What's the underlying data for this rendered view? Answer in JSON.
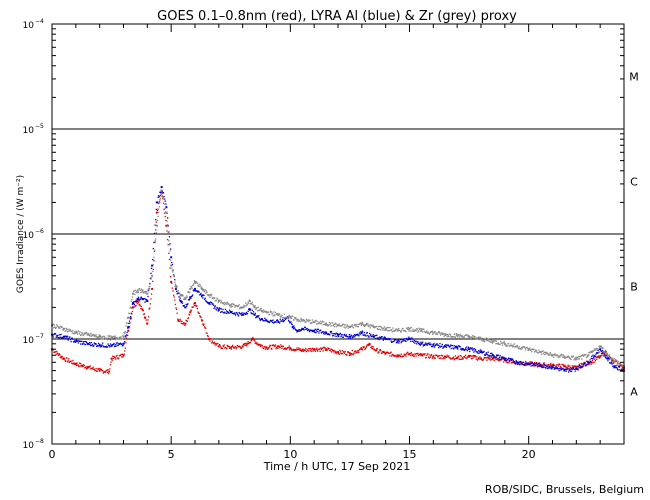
{
  "chart_data": {
    "type": "scatter",
    "title": "GOES 0.1–0.8nm (red), LYRA Al (blue) & Zr (grey) proxy",
    "xlabel": "Time / h UTC, 17 Sep 2021",
    "ylabel": "GOES Irradiance / (W m⁻²)",
    "xlim": [
      0,
      24
    ],
    "ylim": [
      1e-08,
      0.0001
    ],
    "yscale": "log",
    "x_ticks": [
      0,
      5,
      10,
      15,
      20
    ],
    "x_tick_labels": [
      "0",
      "5",
      "10",
      "15",
      "20"
    ],
    "y_ticks": [
      1e-08,
      1e-07,
      1e-06,
      1e-05,
      0.0001
    ],
    "y_tick_labels": [
      {
        "base": "10",
        "exp": "−8"
      },
      {
        "base": "10",
        "exp": "−7"
      },
      {
        "base": "10",
        "exp": "−6"
      },
      {
        "base": "10",
        "exp": "−5"
      },
      {
        "base": "10",
        "exp": "−4"
      }
    ],
    "class_lines": [
      1e-07,
      1e-06,
      1e-05
    ],
    "flare_classes": [
      {
        "label": "A",
        "center": 3.16e-08
      },
      {
        "label": "B",
        "center": 3.16e-07
      },
      {
        "label": "C",
        "center": 3.16e-06
      },
      {
        "label": "M",
        "center": 3.16e-05
      }
    ],
    "series": [
      {
        "name": "GOES 0.1–0.8nm",
        "color": "#e00000",
        "x": [
          0.0,
          0.5,
          1.0,
          1.5,
          2.0,
          2.4,
          2.5,
          3.0,
          3.2,
          3.4,
          3.6,
          3.8,
          3.9,
          4.0,
          4.2,
          4.4,
          4.6,
          4.8,
          5.0,
          5.3,
          5.6,
          5.8,
          6.0,
          6.3,
          6.6,
          7.0,
          7.5,
          8.0,
          8.2,
          8.4,
          8.7,
          9.0,
          9.5,
          10.0,
          10.5,
          11.0,
          11.5,
          12.0,
          12.5,
          13.0,
          13.3,
          13.6,
          14.0,
          14.5,
          15.0,
          15.5,
          16.0,
          16.5,
          17.0,
          17.5,
          18.0,
          18.5,
          19.0,
          19.5,
          20.0,
          20.5,
          21.0,
          21.5,
          22.0,
          22.3,
          22.6,
          23.0,
          23.2,
          23.5,
          24.0
        ],
        "y": [
          8e-08,
          6.5e-08,
          5.8e-08,
          5.4e-08,
          5e-08,
          4.9e-08,
          6.5e-08,
          7e-08,
          1.2e-07,
          2e-07,
          2.3e-07,
          1.9e-07,
          1.6e-07,
          1.4e-07,
          3e-07,
          1.6e-06,
          2.5e-06,
          1.2e-06,
          3.5e-07,
          1.5e-07,
          1.4e-07,
          1.8e-07,
          2.2e-07,
          1.5e-07,
          1e-07,
          8.5e-08,
          8.3e-08,
          8.5e-08,
          9e-08,
          1e-07,
          8.8e-08,
          8.3e-08,
          8.5e-08,
          8.2e-08,
          7.8e-08,
          8e-08,
          8e-08,
          7.5e-08,
          7.3e-08,
          8e-08,
          8.8e-08,
          7.8e-08,
          7.3e-08,
          7e-08,
          7.2e-08,
          7e-08,
          6.8e-08,
          6.8e-08,
          6.6e-08,
          6.8e-08,
          6.5e-08,
          6.5e-08,
          6.3e-08,
          6e-08,
          5.8e-08,
          5.7e-08,
          5.6e-08,
          5.5e-08,
          5.3e-08,
          5.8e-08,
          6e-08,
          6.8e-08,
          7.5e-08,
          6.2e-08,
          5.3e-08
        ]
      },
      {
        "name": "LYRA Al proxy",
        "color": "#0000d0",
        "x": [
          0.0,
          0.5,
          1.0,
          1.5,
          2.0,
          2.5,
          3.0,
          3.2,
          3.4,
          3.6,
          3.8,
          4.0,
          4.2,
          4.4,
          4.6,
          4.8,
          5.0,
          5.2,
          5.4,
          5.6,
          5.8,
          6.0,
          6.3,
          6.6,
          7.0,
          7.5,
          8.0,
          8.3,
          8.5,
          8.8,
          9.0,
          9.5,
          9.9,
          10.1,
          10.3,
          10.5,
          11.0,
          11.5,
          12.0,
          12.5,
          13.0,
          13.5,
          14.0,
          14.5,
          15.0,
          15.5,
          16.0,
          16.5,
          17.0,
          17.5,
          18.0,
          18.5,
          19.0,
          19.5,
          20.0,
          20.5,
          21.0,
          21.5,
          22.0,
          22.5,
          23.0,
          23.3,
          23.6,
          24.0
        ],
        "y": [
          1.1e-07,
          1.05e-07,
          9.5e-08,
          9e-08,
          8.8e-08,
          8.6e-08,
          9e-08,
          1.3e-07,
          2.2e-07,
          2.4e-07,
          2.4e-07,
          2.3e-07,
          5e-07,
          2e-06,
          2.8e-06,
          1.8e-06,
          6e-07,
          3e-07,
          2.3e-07,
          2e-07,
          2.5e-07,
          3e-07,
          2.6e-07,
          2.2e-07,
          1.9e-07,
          1.8e-07,
          1.7e-07,
          1.9e-07,
          1.7e-07,
          1.55e-07,
          1.5e-07,
          1.45e-07,
          1.6e-07,
          1.3e-07,
          1.2e-07,
          1.25e-07,
          1.2e-07,
          1.15e-07,
          1.1e-07,
          1.05e-07,
          1.15e-07,
          1.05e-07,
          1e-07,
          9.5e-08,
          1e-07,
          9e-08,
          8.8e-08,
          8.5e-08,
          8.3e-08,
          8e-08,
          7.5e-08,
          7e-08,
          6.5e-08,
          6e-08,
          5.8e-08,
          5.6e-08,
          5.4e-08,
          5e-08,
          5.2e-08,
          6e-08,
          8e-08,
          6.5e-08,
          5.5e-08,
          5e-08
        ]
      },
      {
        "name": "LYRA Zr proxy",
        "color": "#888888",
        "x": [
          0.0,
          0.5,
          1.0,
          1.5,
          2.0,
          2.5,
          3.0,
          3.2,
          3.4,
          3.6,
          3.8,
          4.0,
          4.2,
          4.4,
          4.6,
          4.8,
          5.0,
          5.2,
          5.4,
          5.6,
          5.8,
          6.0,
          6.3,
          6.6,
          7.0,
          7.5,
          8.0,
          8.3,
          8.5,
          8.8,
          9.0,
          9.5,
          10.0,
          10.5,
          11.0,
          11.5,
          12.0,
          12.5,
          13.0,
          13.5,
          14.0,
          14.5,
          15.0,
          15.5,
          16.0,
          16.5,
          17.0,
          17.5,
          18.0,
          18.5,
          19.0,
          19.5,
          20.0,
          20.5,
          21.0,
          21.5,
          22.0,
          22.5,
          23.0,
          23.5,
          24.0
        ],
        "y": [
          1.35e-07,
          1.25e-07,
          1.15e-07,
          1.1e-07,
          1.05e-07,
          1.02e-07,
          1.05e-07,
          1.6e-07,
          2.7e-07,
          2.9e-07,
          2.9e-07,
          2.7e-07,
          4e-07,
          1.2e-06,
          2.6e-06,
          1.6e-06,
          5e-07,
          3.2e-07,
          2.6e-07,
          2.4e-07,
          3e-07,
          3.5e-07,
          3e-07,
          2.6e-07,
          2.3e-07,
          2.1e-07,
          2e-07,
          2.3e-07,
          2e-07,
          1.85e-07,
          1.8e-07,
          1.7e-07,
          1.6e-07,
          1.5e-07,
          1.45e-07,
          1.4e-07,
          1.35e-07,
          1.3e-07,
          1.4e-07,
          1.3e-07,
          1.25e-07,
          1.2e-07,
          1.25e-07,
          1.2e-07,
          1.15e-07,
          1.1e-07,
          1.08e-07,
          1.05e-07,
          1e-07,
          9.5e-08,
          9e-08,
          8.5e-08,
          8e-08,
          7.5e-08,
          7e-08,
          6.8e-08,
          6.5e-08,
          7e-08,
          8.5e-08,
          6.5e-08,
          5.5e-08
        ]
      }
    ],
    "footer": "ROB/SIDC, Brussels, Belgium"
  }
}
